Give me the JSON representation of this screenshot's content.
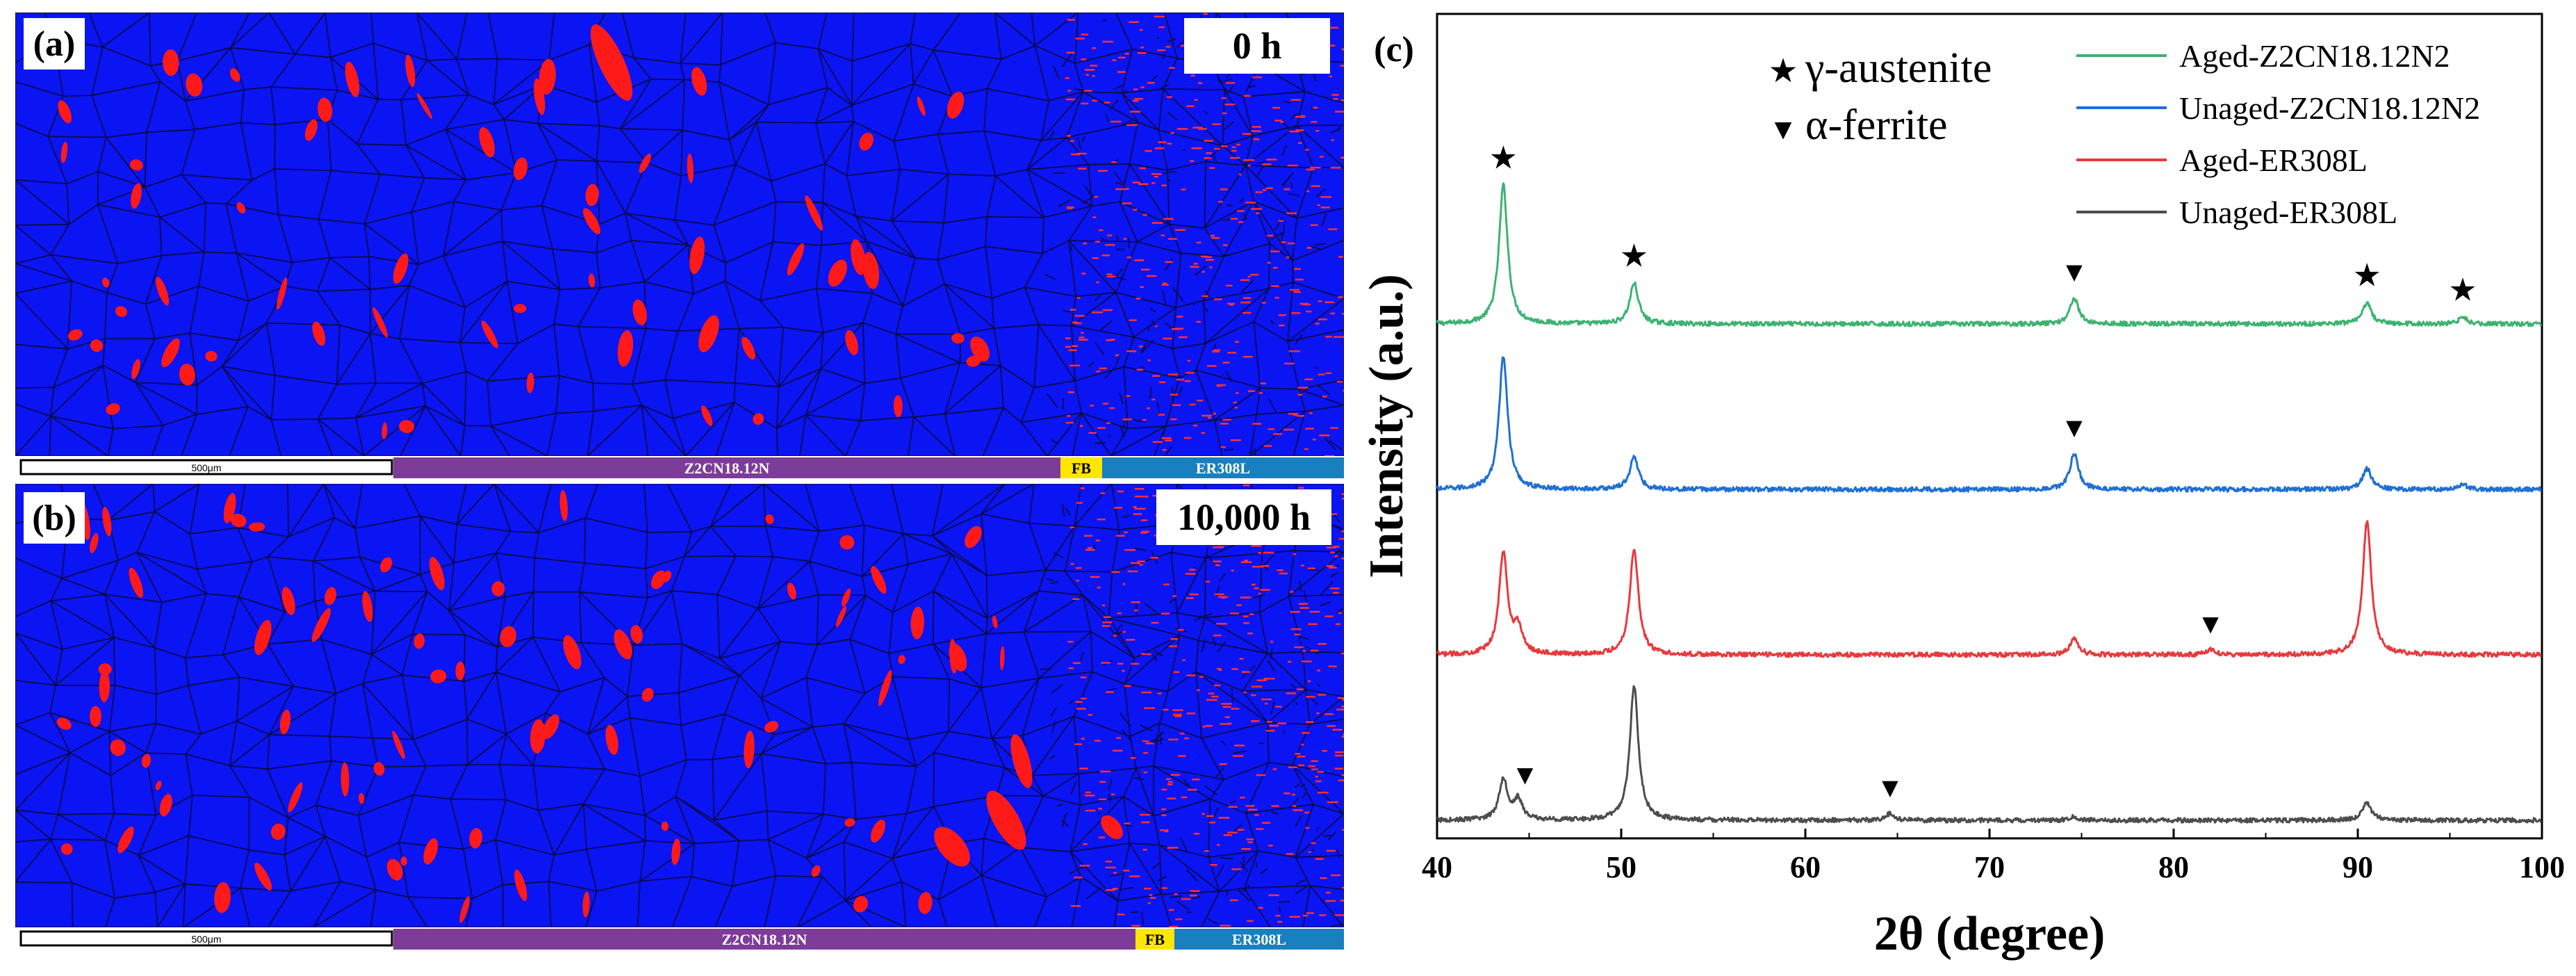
{
  "colors": {
    "ebsd_blue": "#0b14f2",
    "ebsd_red": "#ff1a1a",
    "grain_boundary": "#0a0a3c",
    "bar_purple": "#7d3c98",
    "bar_yellow": "#ffe600",
    "bar_teal": "#1a7fbf",
    "aged_z2cn": "#3cb371",
    "unaged_z2cn": "#1f6fd6",
    "aged_er308l": "#e8393c",
    "unaged_er308l": "#4d4d4d"
  },
  "panel_a": {
    "label": "(a)",
    "time": "0 h",
    "scale": "500μm",
    "region_base": "Z2CN18.12N",
    "region_fb": "FB",
    "region_weld": "ER308L"
  },
  "panel_b": {
    "label": "(b)",
    "time": "10,000 h",
    "scale": "500μm",
    "region_base": "Z2CN18.12N",
    "region_fb": "FB",
    "region_weld": "ER308L"
  },
  "chart_data": {
    "type": "line",
    "panel_label": "(c)",
    "xlabel": "2θ (degree)",
    "ylabel": "Intensity (a.u.)",
    "xlim": [
      40,
      100
    ],
    "xticks": [
      40,
      50,
      60,
      70,
      80,
      90,
      100
    ],
    "symbol_legend": [
      {
        "symbol": "★",
        "label": "γ-austenite"
      },
      {
        "symbol": "▼",
        "label": "α-ferrite"
      }
    ],
    "series": [
      {
        "name": "Aged-Z2CN18.12N2",
        "color": "#3cb371",
        "baseline": 3.0,
        "peaks": [
          [
            43.6,
            0.85
          ],
          [
            50.7,
            0.25
          ],
          [
            74.6,
            0.16
          ],
          [
            90.5,
            0.13
          ],
          [
            95.7,
            0.04
          ]
        ]
      },
      {
        "name": "Unaged-Z2CN18.12N2",
        "color": "#1f6fd6",
        "baseline": 2.0,
        "peaks": [
          [
            43.6,
            0.82
          ],
          [
            50.7,
            0.2
          ],
          [
            74.6,
            0.22
          ],
          [
            90.5,
            0.13
          ],
          [
            95.7,
            0.03
          ]
        ]
      },
      {
        "name": "Aged-ER308L",
        "color": "#e8393c",
        "baseline": 1.0,
        "peaks": [
          [
            43.6,
            0.62
          ],
          [
            44.4,
            0.15
          ],
          [
            50.7,
            0.65
          ],
          [
            74.6,
            0.1
          ],
          [
            82.0,
            0.03
          ],
          [
            90.5,
            0.82
          ]
        ]
      },
      {
        "name": "Unaged-ER308L",
        "color": "#4d4d4d",
        "baseline": 0.0,
        "peaks": [
          [
            43.6,
            0.25
          ],
          [
            44.4,
            0.12
          ],
          [
            50.7,
            0.82
          ],
          [
            64.6,
            0.04
          ],
          [
            74.6,
            0.02
          ],
          [
            90.5,
            0.11
          ]
        ]
      }
    ],
    "markers": [
      {
        "series": 0,
        "x": 43.6,
        "symbol": "★"
      },
      {
        "series": 0,
        "x": 50.7,
        "symbol": "★"
      },
      {
        "series": 0,
        "x": 74.6,
        "symbol": "▼"
      },
      {
        "series": 0,
        "x": 90.5,
        "symbol": "★"
      },
      {
        "series": 0,
        "x": 95.7,
        "symbol": "★"
      },
      {
        "series": 1,
        "x": 74.6,
        "symbol": "▼"
      },
      {
        "series": 2,
        "x": 82.0,
        "symbol": "▼"
      },
      {
        "series": 3,
        "x": 44.4,
        "symbol": "▼"
      },
      {
        "series": 3,
        "x": 64.6,
        "symbol": "▼"
      }
    ]
  }
}
